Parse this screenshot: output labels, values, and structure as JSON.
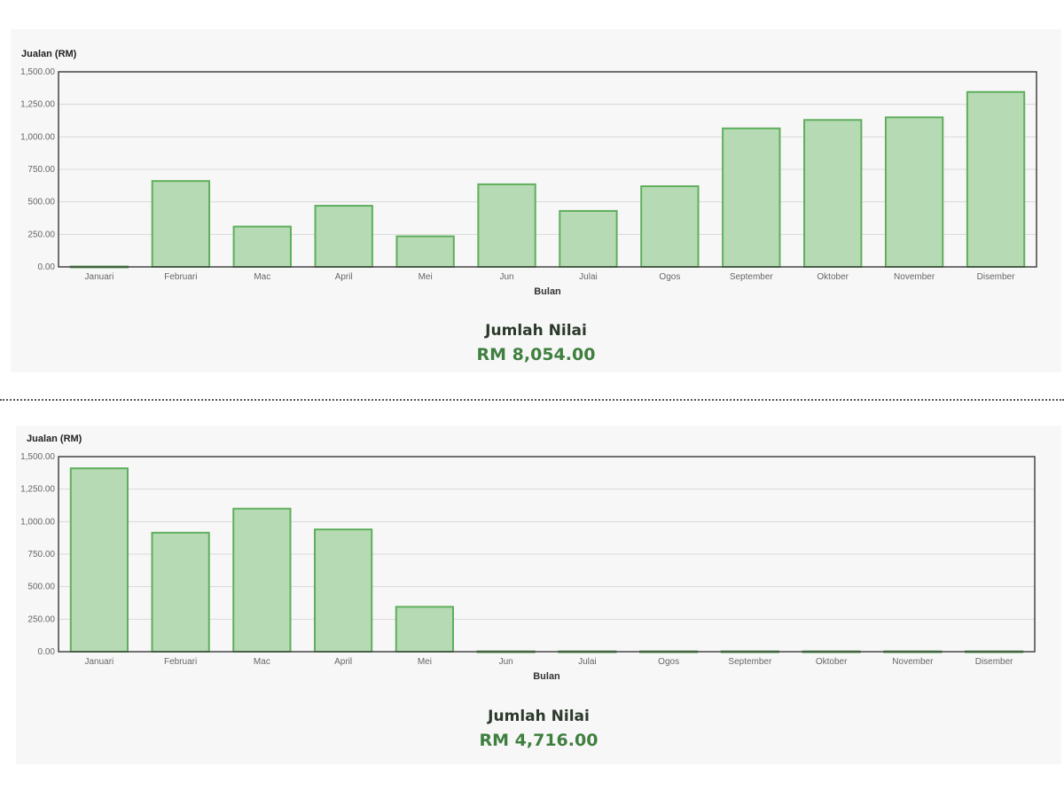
{
  "chart_data": [
    {
      "type": "bar",
      "ylabel": "Jualan (RM)",
      "xlabel": "Bulan",
      "categories": [
        "Januari",
        "Februari",
        "Mac",
        "April",
        "Mei",
        "Jun",
        "Julai",
        "Ogos",
        "September",
        "Oktober",
        "November",
        "Disember"
      ],
      "values": [
        3,
        660,
        310,
        470,
        235,
        635,
        430,
        620,
        1065,
        1130,
        1150,
        1345
      ],
      "ylim": [
        0,
        1500
      ],
      "yticks": [
        "0.00",
        "250.00",
        "500.00",
        "750.00",
        "1,000.00",
        "1,250.00",
        "1,500.00"
      ],
      "grid": true,
      "bar_fill": "#b6dbb4",
      "bar_stroke": "#5fae5c",
      "total_label": "Jumlah Nilai",
      "total_value": "RM 8,054.00"
    },
    {
      "type": "bar",
      "ylabel": "Jualan (RM)",
      "xlabel": "Bulan",
      "categories": [
        "Januari",
        "Februari",
        "Mac",
        "April",
        "Mei",
        "Jun",
        "Julai",
        "Ogos",
        "September",
        "Oktober",
        "November",
        "Disember"
      ],
      "values": [
        1410,
        915,
        1100,
        940,
        345,
        3,
        3,
        3,
        3,
        3,
        3,
        3
      ],
      "ylim": [
        0,
        1500
      ],
      "yticks": [
        "0.00",
        "250.00",
        "500.00",
        "750.00",
        "1,000.00",
        "1,250.00",
        "1,500.00"
      ],
      "grid": true,
      "bar_fill": "#b6dbb4",
      "bar_stroke": "#5fae5c",
      "total_label": "Jumlah Nilai",
      "total_value": "RM 4,716.00"
    }
  ]
}
